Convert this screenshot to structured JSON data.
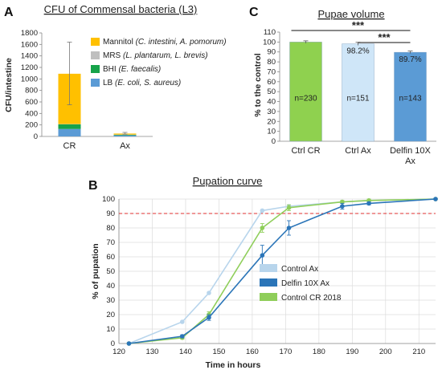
{
  "panels": {
    "A": "A",
    "B": "B",
    "C": "C"
  },
  "chart_data": [
    {
      "panel": "A",
      "type": "bar",
      "stacked": true,
      "title": "CFU of Commensal bacteria (L3)",
      "ylabel": "CFU/intestine",
      "xlabel": "",
      "categories": [
        "CR",
        "Ax"
      ],
      "ylim": [
        0,
        1800
      ],
      "yticks": [
        0,
        200,
        400,
        600,
        800,
        1000,
        1200,
        1400,
        1600,
        1800
      ],
      "series": [
        {
          "name": "LB",
          "name_italic": "(E. coli, S. aureus)",
          "color": "#5b9bd5",
          "values": [
            130,
            20
          ]
        },
        {
          "name": "BHI",
          "name_italic": "(E. faecalis)",
          "color": "#16a34a",
          "values": [
            80,
            8
          ]
        },
        {
          "name": "MRS",
          "name_italic": "(L. plantarum, L. brevis)",
          "color": "#bfbfbf",
          "values": [
            5,
            4
          ]
        },
        {
          "name": "Mannitol",
          "name_italic": "(C. intestini, A. pomorum)",
          "color": "#ffc000",
          "values": [
            875,
            18
          ]
        }
      ],
      "error_bars": [
        [
          550,
          1640
        ],
        [
          40,
          70
        ]
      ],
      "legend_position": "top-right"
    },
    {
      "panel": "B",
      "type": "line",
      "title": "Pupation curve",
      "xlabel": "Time in hours",
      "ylabel": "% of pupation",
      "xlim": [
        120,
        215
      ],
      "xticks": [
        120,
        130,
        140,
        150,
        160,
        170,
        180,
        190,
        200,
        210
      ],
      "ylim": [
        0,
        100
      ],
      "yticks": [
        0,
        10,
        20,
        30,
        40,
        50,
        60,
        70,
        80,
        90,
        100
      ],
      "reference_line": {
        "y": 90,
        "color": "#e03030",
        "style": "dashed"
      },
      "grid": true,
      "legend_position": "right",
      "series": [
        {
          "name": "Control Ax",
          "color": "#b8d5ec",
          "x": [
            123,
            139,
            147,
            163,
            171,
            187,
            195,
            215
          ],
          "y": [
            0,
            15,
            35,
            92,
            95,
            98,
            99,
            100
          ],
          "err": [
            0,
            0,
            0,
            0,
            0,
            0,
            0,
            0
          ]
        },
        {
          "name": "Delfin 10X Ax",
          "color": "#2b75b8",
          "x": [
            123,
            139,
            147,
            163,
            171,
            187,
            195,
            215
          ],
          "y": [
            0,
            5,
            18,
            61,
            80,
            95,
            97,
            100
          ],
          "err": [
            0,
            1,
            2,
            7,
            5,
            2,
            1,
            0
          ]
        },
        {
          "name": "Control CR 2018",
          "color": "#8fce5a",
          "x": [
            123,
            139,
            147,
            163,
            171,
            187,
            195,
            215
          ],
          "y": [
            0,
            4,
            20,
            80,
            94,
            98,
            99,
            100
          ],
          "err": [
            0,
            1,
            2,
            3,
            2,
            1,
            1,
            0
          ]
        }
      ]
    },
    {
      "panel": "C",
      "type": "bar",
      "title": "Pupae volume",
      "ylabel": "% to the control",
      "categories": [
        "Ctrl CR",
        "Ctrl Ax",
        "Delfin 10X\nAx"
      ],
      "ylim": [
        0,
        110
      ],
      "yticks": [
        0,
        10,
        20,
        30,
        40,
        50,
        60,
        70,
        80,
        90,
        100,
        110
      ],
      "values": [
        100,
        98.2,
        89.7
      ],
      "err": [
        1.2,
        1.5,
        1.2
      ],
      "colors": [
        "#8fd14f",
        "#cfe6f8",
        "#5b9bd5"
      ],
      "value_labels": [
        "",
        "98.2%",
        "89.7%"
      ],
      "n_labels": [
        "n=230",
        "n=151",
        "n=143"
      ],
      "significance": [
        {
          "from": 0,
          "to": 2,
          "label": "***"
        },
        {
          "from": 1,
          "to": 2,
          "label": "***"
        }
      ]
    }
  ]
}
